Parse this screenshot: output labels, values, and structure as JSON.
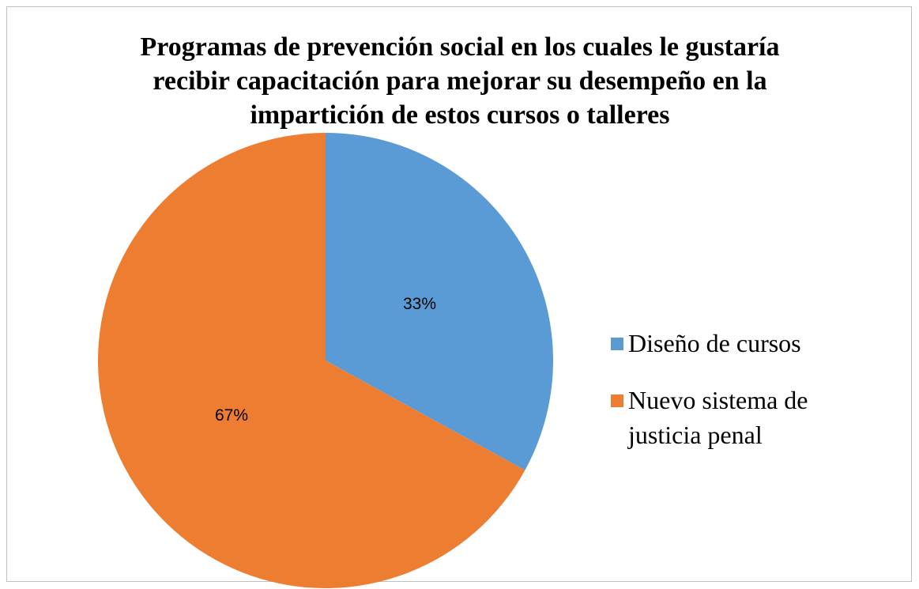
{
  "chart_data": {
    "type": "pie",
    "title": "Programas de prevención social en los cuales le gustaría recibir capacitación para mejorar su desempeño en la impartición de estos cursos o talleres",
    "categories": [
      "Diseño de cursos",
      "Nuevo sistema de justicia penal"
    ],
    "values": [
      33,
      67
    ],
    "value_labels": [
      "33%",
      "67%"
    ],
    "colors": [
      "#5b9bd5",
      "#ed7d31"
    ],
    "legend": "right"
  }
}
